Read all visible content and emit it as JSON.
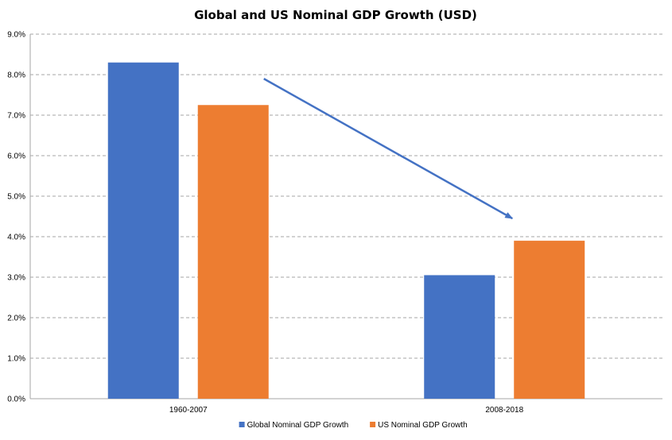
{
  "chart_data": {
    "type": "bar",
    "title": "Global and US Nominal GDP Growth (USD)",
    "categories": [
      "1960-2007",
      "2008-2018"
    ],
    "series": [
      {
        "name": "Global Nominal GDP Growth",
        "values": [
          8.3,
          3.05
        ],
        "color": "#4472C4"
      },
      {
        "name": "US Nominal GDP Growth",
        "values": [
          7.25,
          3.9
        ],
        "color": "#ED7D31"
      }
    ],
    "xlabel": "",
    "ylabel": "",
    "ylim": [
      0,
      9
    ],
    "yticks": [
      "0.0%",
      "1.0%",
      "2.0%",
      "3.0%",
      "4.0%",
      "5.0%",
      "6.0%",
      "7.0%",
      "8.0%",
      "9.0%"
    ],
    "grid": true,
    "grid_style": "dashed",
    "legend_placement": "bottom-center",
    "annotation": {
      "type": "arrow",
      "from": {
        "category": "1960-2007",
        "y": 7.9
      },
      "to": {
        "category": "2008-2018",
        "y": 4.45
      },
      "color": "#4472C4"
    }
  }
}
